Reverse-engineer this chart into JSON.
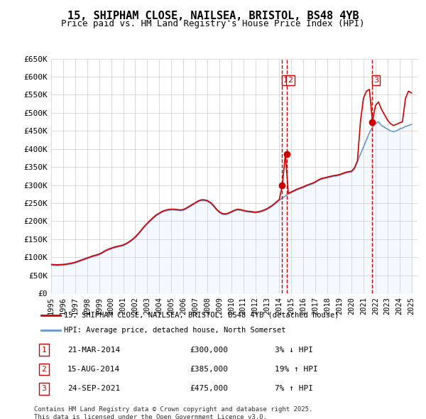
{
  "title": "15, SHIPHAM CLOSE, NAILSEA, BRISTOL, BS48 4YB",
  "subtitle": "Price paid vs. HM Land Registry's House Price Index (HPI)",
  "ylabel": "",
  "xlabel": "",
  "ylim": [
    0,
    650000
  ],
  "yticks": [
    0,
    50000,
    100000,
    150000,
    200000,
    250000,
    300000,
    350000,
    400000,
    450000,
    500000,
    550000,
    600000,
    650000
  ],
  "ytick_labels": [
    "£0",
    "£50K",
    "£100K",
    "£150K",
    "£200K",
    "£250K",
    "£300K",
    "£350K",
    "£400K",
    "£450K",
    "£500K",
    "£550K",
    "£600K",
    "£650K"
  ],
  "xlim_start": 1995.0,
  "xlim_end": 2025.5,
  "xticks": [
    1995,
    1996,
    1997,
    1998,
    1999,
    2000,
    2001,
    2002,
    2003,
    2004,
    2005,
    2006,
    2007,
    2008,
    2009,
    2010,
    2011,
    2012,
    2013,
    2014,
    2015,
    2016,
    2017,
    2018,
    2019,
    2020,
    2021,
    2022,
    2023,
    2024,
    2025
  ],
  "background_color": "#ffffff",
  "plot_bg_color": "#ffffff",
  "grid_color": "#cccccc",
  "red_line_color": "#cc0000",
  "blue_line_color": "#6699cc",
  "blue_fill_color": "#ddeeff",
  "transaction_marker_color": "#cc0000",
  "transaction_vline_color": "#cc0000",
  "transactions": [
    {
      "num": 1,
      "date": "21-MAR-2014",
      "date_float": 2014.22,
      "price": 300000,
      "hpi_diff": "3% ↓ HPI"
    },
    {
      "num": 2,
      "date": "15-AUG-2014",
      "date_float": 2014.62,
      "price": 385000,
      "hpi_diff": "19% ↑ HPI"
    },
    {
      "num": 3,
      "date": "24-SEP-2021",
      "date_float": 2021.73,
      "price": 475000,
      "hpi_diff": "7% ↑ HPI"
    }
  ],
  "legend_line1": "15, SHIPHAM CLOSE, NAILSEA, BRISTOL, BS48 4YB (detached house)",
  "legend_line2": "HPI: Average price, detached house, North Somerset",
  "footnote": "Contains HM Land Registry data © Crown copyright and database right 2025.\nThis data is licensed under the Open Government Licence v3.0.",
  "hpi_data_x": [
    1995.0,
    1995.25,
    1995.5,
    1995.75,
    1996.0,
    1996.25,
    1996.5,
    1996.75,
    1997.0,
    1997.25,
    1997.5,
    1997.75,
    1998.0,
    1998.25,
    1998.5,
    1998.75,
    1999.0,
    1999.25,
    1999.5,
    1999.75,
    2000.0,
    2000.25,
    2000.5,
    2000.75,
    2001.0,
    2001.25,
    2001.5,
    2001.75,
    2002.0,
    2002.25,
    2002.5,
    2002.75,
    2003.0,
    2003.25,
    2003.5,
    2003.75,
    2004.0,
    2004.25,
    2004.5,
    2004.75,
    2005.0,
    2005.25,
    2005.5,
    2005.75,
    2006.0,
    2006.25,
    2006.5,
    2006.75,
    2007.0,
    2007.25,
    2007.5,
    2007.75,
    2008.0,
    2008.25,
    2008.5,
    2008.75,
    2009.0,
    2009.25,
    2009.5,
    2009.75,
    2010.0,
    2010.25,
    2010.5,
    2010.75,
    2011.0,
    2011.25,
    2011.5,
    2011.75,
    2012.0,
    2012.25,
    2012.5,
    2012.75,
    2013.0,
    2013.25,
    2013.5,
    2013.75,
    2014.0,
    2014.25,
    2014.5,
    2014.75,
    2015.0,
    2015.25,
    2015.5,
    2015.75,
    2016.0,
    2016.25,
    2016.5,
    2016.75,
    2017.0,
    2017.25,
    2017.5,
    2017.75,
    2018.0,
    2018.25,
    2018.5,
    2018.75,
    2019.0,
    2019.25,
    2019.5,
    2019.75,
    2020.0,
    2020.25,
    2020.5,
    2020.75,
    2021.0,
    2021.25,
    2021.5,
    2021.75,
    2022.0,
    2022.25,
    2022.5,
    2022.75,
    2023.0,
    2023.25,
    2023.5,
    2023.75,
    2024.0,
    2024.25,
    2024.5,
    2024.75,
    2025.0
  ],
  "hpi_data_y": [
    78000,
    77500,
    77000,
    77500,
    78000,
    79000,
    80500,
    82000,
    84000,
    87000,
    90000,
    93000,
    96000,
    99000,
    102000,
    104000,
    107000,
    111000,
    116000,
    120000,
    123000,
    126000,
    128000,
    130000,
    132000,
    136000,
    141000,
    147000,
    154000,
    163000,
    173000,
    183000,
    192000,
    200000,
    208000,
    215000,
    220000,
    225000,
    228000,
    230000,
    231000,
    231000,
    230000,
    229000,
    230000,
    234000,
    239000,
    244000,
    249000,
    254000,
    257000,
    257000,
    255000,
    250000,
    242000,
    232000,
    224000,
    219000,
    218000,
    220000,
    224000,
    228000,
    231000,
    230000,
    228000,
    226000,
    225000,
    224000,
    223000,
    224000,
    226000,
    229000,
    233000,
    238000,
    244000,
    251000,
    258000,
    264000,
    270000,
    275000,
    279000,
    283000,
    287000,
    290000,
    293000,
    297000,
    300000,
    303000,
    307000,
    312000,
    316000,
    318000,
    320000,
    322000,
    324000,
    325000,
    327000,
    330000,
    333000,
    335000,
    336000,
    345000,
    365000,
    385000,
    405000,
    425000,
    445000,
    460000,
    470000,
    475000,
    465000,
    460000,
    455000,
    450000,
    448000,
    450000,
    455000,
    458000,
    462000,
    465000,
    468000
  ],
  "red_data_x": [
    1995.0,
    1995.25,
    1995.5,
    1995.75,
    1996.0,
    1996.25,
    1996.5,
    1996.75,
    1997.0,
    1997.25,
    1997.5,
    1997.75,
    1998.0,
    1998.25,
    1998.5,
    1998.75,
    1999.0,
    1999.25,
    1999.5,
    1999.75,
    2000.0,
    2000.25,
    2000.5,
    2000.75,
    2001.0,
    2001.25,
    2001.5,
    2001.75,
    2002.0,
    2002.25,
    2002.5,
    2002.75,
    2003.0,
    2003.25,
    2003.5,
    2003.75,
    2004.0,
    2004.25,
    2004.5,
    2004.75,
    2005.0,
    2005.25,
    2005.5,
    2005.75,
    2006.0,
    2006.25,
    2006.5,
    2006.75,
    2007.0,
    2007.25,
    2007.5,
    2007.75,
    2008.0,
    2008.25,
    2008.5,
    2008.75,
    2009.0,
    2009.25,
    2009.5,
    2009.75,
    2010.0,
    2010.25,
    2010.5,
    2010.75,
    2011.0,
    2011.25,
    2011.5,
    2011.75,
    2012.0,
    2012.25,
    2012.5,
    2012.75,
    2013.0,
    2013.25,
    2013.5,
    2013.75,
    2014.0,
    2014.25,
    2014.5,
    2014.75,
    2015.0,
    2015.25,
    2015.5,
    2015.75,
    2016.0,
    2016.25,
    2016.5,
    2016.75,
    2017.0,
    2017.25,
    2017.5,
    2017.75,
    2018.0,
    2018.25,
    2018.5,
    2018.75,
    2019.0,
    2019.25,
    2019.5,
    2019.75,
    2020.0,
    2020.25,
    2020.5,
    2020.75,
    2021.0,
    2021.25,
    2021.5,
    2021.75,
    2022.0,
    2022.25,
    2022.5,
    2022.75,
    2023.0,
    2023.25,
    2023.5,
    2023.75,
    2024.0,
    2024.25,
    2024.5,
    2024.75,
    2025.0
  ],
  "red_data_y": [
    80000,
    79500,
    79000,
    79500,
    80000,
    81000,
    82500,
    84000,
    86000,
    89000,
    92000,
    95000,
    98000,
    101000,
    104000,
    106000,
    109000,
    113000,
    118000,
    122000,
    125000,
    128000,
    130000,
    132000,
    134000,
    138000,
    143000,
    149000,
    156000,
    165000,
    175000,
    185000,
    194000,
    202000,
    210000,
    217000,
    222000,
    227000,
    230000,
    232000,
    233000,
    233000,
    232000,
    231000,
    232000,
    236000,
    241000,
    246000,
    251000,
    256000,
    259000,
    259000,
    257000,
    252000,
    244000,
    234000,
    226000,
    221000,
    220000,
    222000,
    226000,
    230000,
    233000,
    232000,
    230000,
    228000,
    227000,
    226000,
    225000,
    226000,
    228000,
    231000,
    235000,
    240000,
    246000,
    253000,
    260000,
    300000,
    385000,
    277000,
    281000,
    285000,
    289000,
    292000,
    295000,
    299000,
    302000,
    305000,
    309000,
    314000,
    318000,
    320000,
    322000,
    324000,
    326000,
    327000,
    329000,
    332000,
    335000,
    337000,
    338000,
    347000,
    367000,
    475000,
    540000,
    560000,
    565000,
    475000,
    520000,
    530000,
    510000,
    495000,
    480000,
    470000,
    465000,
    468000,
    472000,
    475000,
    540000,
    560000,
    555000
  ]
}
